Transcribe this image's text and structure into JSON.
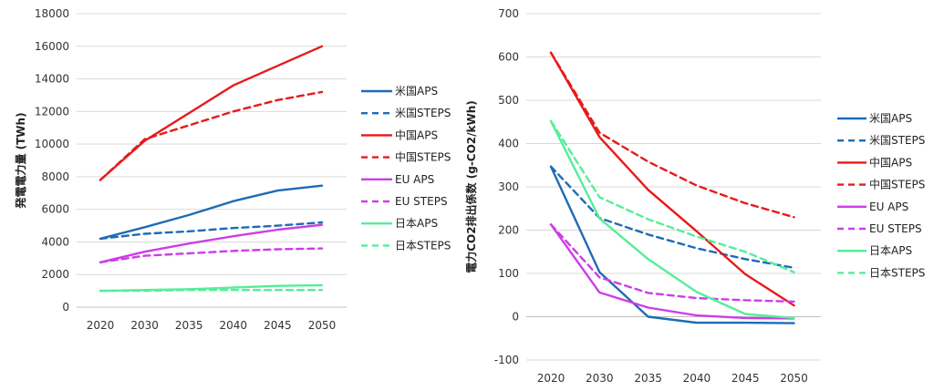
{
  "chart_data": [
    {
      "type": "line",
      "ylabel": "発電電力量 (TWh)",
      "xlabel": "",
      "categories": [
        "2020",
        "2030",
        "2035",
        "2040",
        "2045",
        "2050"
      ],
      "ylim": [
        0,
        18000
      ],
      "yticks": [
        "0",
        "2000",
        "4000",
        "6000",
        "8000",
        "10000",
        "12000",
        "14000",
        "16000",
        "18000"
      ],
      "grid": true,
      "legend_position": "right",
      "series": [
        {
          "name": "米国APS",
          "color": "#1f6bb5",
          "dash": false,
          "values": [
            4200,
            4900,
            5650,
            6500,
            7150,
            7450
          ]
        },
        {
          "name": "米国STEPS",
          "color": "#1f6bb5",
          "dash": true,
          "values": [
            4200,
            4500,
            4650,
            4850,
            5000,
            5200
          ]
        },
        {
          "name": "中国APS",
          "color": "#e8191b",
          "dash": false,
          "values": [
            7800,
            10200,
            11900,
            13600,
            14800,
            16000
          ]
        },
        {
          "name": "中国STEPS",
          "color": "#e8191b",
          "dash": true,
          "values": [
            7800,
            10300,
            11150,
            12000,
            12700,
            13200
          ]
        },
        {
          "name": "EU APS",
          "color": "#cc3ee6",
          "dash": false,
          "values": [
            2750,
            3400,
            3900,
            4350,
            4750,
            5050
          ]
        },
        {
          "name": "EU STEPS",
          "color": "#cc3ee6",
          "dash": true,
          "values": [
            2750,
            3150,
            3300,
            3450,
            3550,
            3600
          ]
        },
        {
          "name": "日本APS",
          "color": "#55ee99",
          "dash": false,
          "values": [
            1000,
            1050,
            1100,
            1200,
            1300,
            1350
          ]
        },
        {
          "name": "日本STEPS",
          "color": "#55ee99",
          "dash": true,
          "values": [
            1000,
            1000,
            1050,
            1050,
            1050,
            1050
          ]
        }
      ]
    },
    {
      "type": "line",
      "ylabel": "電力CO2排出係数 (g-CO2/kWh)",
      "xlabel": "",
      "categories": [
        "2020",
        "2030",
        "2035",
        "2040",
        "2045",
        "2050"
      ],
      "ylim": [
        -100,
        700
      ],
      "yticks": [
        "-100",
        "0",
        "100",
        "200",
        "300",
        "400",
        "500",
        "600",
        "700"
      ],
      "grid": true,
      "legend_position": "right",
      "series": [
        {
          "name": "米国APS",
          "color": "#1f6bb5",
          "dash": false,
          "values": [
            347,
            103,
            0,
            -14,
            -14,
            -15
          ]
        },
        {
          "name": "米国STEPS",
          "color": "#1f6bb5",
          "dash": true,
          "values": [
            347,
            228,
            190,
            158,
            133,
            113
          ]
        },
        {
          "name": "中国APS",
          "color": "#e8191b",
          "dash": false,
          "values": [
            610,
            415,
            293,
            197,
            98,
            26
          ]
        },
        {
          "name": "中国STEPS",
          "color": "#e8191b",
          "dash": true,
          "values": [
            610,
            425,
            358,
            303,
            262,
            230
          ]
        },
        {
          "name": "EU APS",
          "color": "#cc3ee6",
          "dash": false,
          "values": [
            213,
            56,
            21,
            3,
            -3,
            -4
          ]
        },
        {
          "name": "EU STEPS",
          "color": "#cc3ee6",
          "dash": true,
          "values": [
            213,
            91,
            55,
            43,
            38,
            35
          ]
        },
        {
          "name": "日本APS",
          "color": "#55ee99",
          "dash": false,
          "values": [
            452,
            227,
            133,
            57,
            6,
            -3
          ]
        },
        {
          "name": "日本STEPS",
          "color": "#55ee99",
          "dash": true,
          "values": [
            452,
            276,
            225,
            185,
            150,
            103
          ]
        }
      ]
    }
  ]
}
